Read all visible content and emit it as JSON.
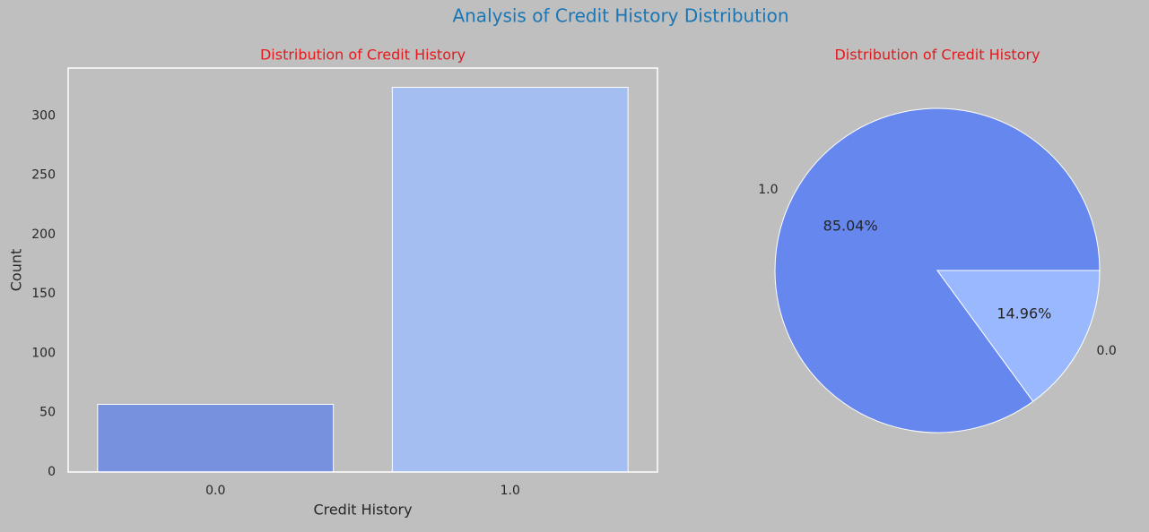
{
  "title": "Analysis of Credit History Distribution",
  "chart_data": [
    {
      "type": "bar",
      "title": "Distribution of Credit History",
      "x_label": "Credit History",
      "y_label": "Count",
      "categories": [
        "0.0",
        "1.0"
      ],
      "values": [
        57,
        324
      ],
      "colors": [
        "#7891de",
        "#a5bef2"
      ],
      "ylim": [
        0,
        340.2
      ],
      "yticks": [
        0,
        50,
        100,
        150,
        200,
        250,
        300
      ],
      "grid": false
    },
    {
      "type": "pie",
      "title": "Distribution of Credit History",
      "categories": [
        "1.0",
        "0.0"
      ],
      "values": [
        85.04,
        14.96
      ],
      "value_labels": [
        "85.04%",
        "14.96%"
      ],
      "colors": [
        "#6687ee",
        "#9ab8fe"
      ]
    }
  ]
}
